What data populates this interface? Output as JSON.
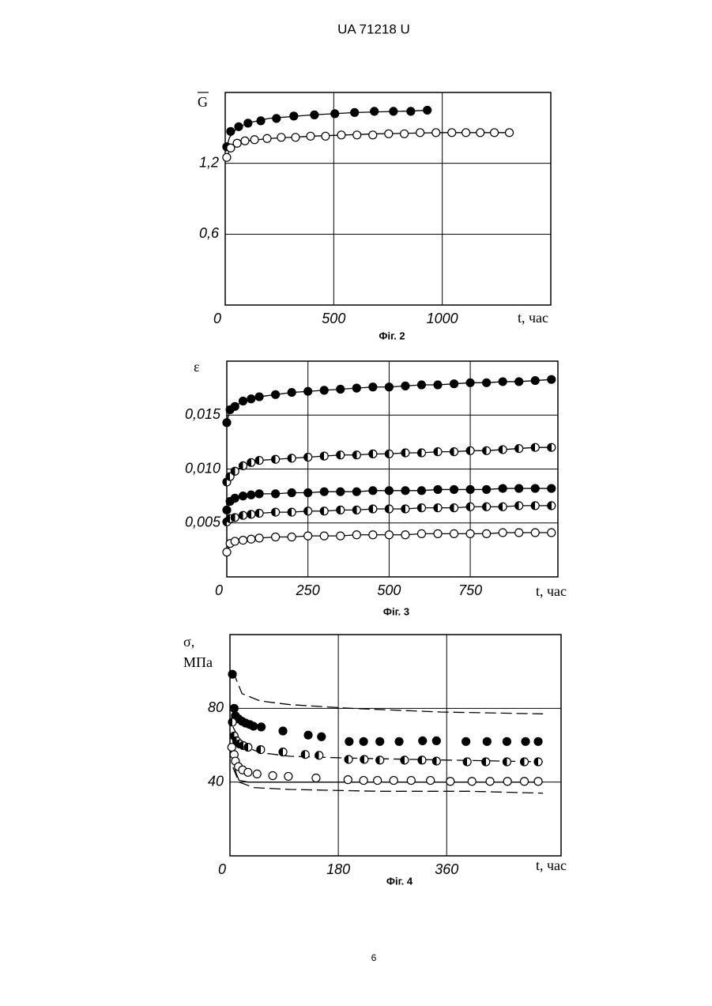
{
  "header": "UA   71218   U",
  "page_number": "6",
  "chart_data": [
    {
      "type": "scatter",
      "caption": "Фіг. 2",
      "y_label": "G",
      "x_label": "t, час",
      "xlim": [
        0,
        1500
      ],
      "ylim": [
        0,
        1.8
      ],
      "xticks": [
        0,
        500,
        1000
      ],
      "yticks": [
        {
          "value": 0.6,
          "label": "0,6"
        },
        {
          "value": 1.2,
          "label": "1,2"
        }
      ],
      "grid": true,
      "series": [
        {
          "marker": "filled",
          "x": [
            7,
            25,
            62,
            105,
            164,
            236,
            316,
            411,
            505,
            596,
            687,
            775,
            855,
            931
          ],
          "values": [
            1.34,
            1.47,
            1.51,
            1.54,
            1.56,
            1.58,
            1.6,
            1.61,
            1.62,
            1.63,
            1.64,
            1.64,
            1.64,
            1.65
          ]
        },
        {
          "marker": "open",
          "x": [
            7,
            25,
            55,
            91,
            135,
            193,
            258,
            324,
            393,
            462,
            535,
            607,
            680,
            753,
            825,
            898,
            971,
            1044,
            1109,
            1175,
            1240,
            1309
          ],
          "values": [
            1.25,
            1.33,
            1.37,
            1.39,
            1.4,
            1.41,
            1.42,
            1.42,
            1.43,
            1.43,
            1.44,
            1.44,
            1.44,
            1.45,
            1.45,
            1.46,
            1.46,
            1.46,
            1.46,
            1.46,
            1.46,
            1.46
          ]
        }
      ],
      "curves": [
        {
          "style": "solid",
          "x": [
            0,
            20,
            50,
            100,
            200,
            400,
            600,
            800,
            950
          ],
          "values": [
            1.3,
            1.42,
            1.49,
            1.54,
            1.58,
            1.61,
            1.63,
            1.64,
            1.65
          ]
        },
        {
          "style": "solid",
          "x": [
            0,
            20,
            50,
            100,
            200,
            400,
            700,
            1000,
            1300
          ],
          "values": [
            1.22,
            1.31,
            1.36,
            1.39,
            1.41,
            1.43,
            1.45,
            1.46,
            1.46
          ]
        }
      ]
    },
    {
      "type": "scatter",
      "caption": "Фіг. 3",
      "y_label": "ε",
      "x_label": "t, час",
      "xlim": [
        0,
        1020
      ],
      "ylim": [
        0,
        0.02
      ],
      "xticks": [
        0,
        250,
        500,
        750
      ],
      "yticks": [
        {
          "value": 0.005,
          "label": "0,005"
        },
        {
          "value": 0.01,
          "label": "0,010"
        },
        {
          "value": 0.015,
          "label": "0,015"
        }
      ],
      "grid": true,
      "x": [
        0,
        10,
        25,
        50,
        75,
        100,
        150,
        200,
        250,
        300,
        350,
        400,
        450,
        500,
        550,
        600,
        650,
        700,
        750,
        800,
        850,
        900,
        950,
        1000
      ],
      "series": [
        {
          "marker": "filled",
          "line": true,
          "values": [
            0.0143,
            0.0155,
            0.0158,
            0.0163,
            0.0165,
            0.0167,
            0.0169,
            0.0171,
            0.0172,
            0.0173,
            0.0174,
            0.0175,
            0.0176,
            0.0176,
            0.0177,
            0.0178,
            0.0178,
            0.0179,
            0.018,
            0.018,
            0.0181,
            0.0181,
            0.0182,
            0.0183
          ]
        },
        {
          "marker": "half",
          "line": true,
          "values": [
            0.0088,
            0.0093,
            0.0098,
            0.0103,
            0.0106,
            0.0108,
            0.0109,
            0.011,
            0.0111,
            0.0112,
            0.0113,
            0.0113,
            0.0114,
            0.0114,
            0.0115,
            0.0115,
            0.0116,
            0.0116,
            0.0117,
            0.0117,
            0.0118,
            0.0119,
            0.012,
            0.012
          ]
        },
        {
          "marker": "filled",
          "line": true,
          "values": [
            0.0062,
            0.007,
            0.0073,
            0.0075,
            0.0076,
            0.0077,
            0.0077,
            0.0078,
            0.0078,
            0.0079,
            0.0079,
            0.0079,
            0.008,
            0.008,
            0.008,
            0.008,
            0.0081,
            0.0081,
            0.0081,
            0.0081,
            0.0082,
            0.0082,
            0.0082,
            0.0082
          ]
        },
        {
          "marker": "half",
          "line": true,
          "values": [
            0.0051,
            0.0054,
            0.0055,
            0.0057,
            0.0058,
            0.0059,
            0.006,
            0.006,
            0.0061,
            0.0061,
            0.0062,
            0.0062,
            0.0063,
            0.0063,
            0.0063,
            0.0064,
            0.0064,
            0.0064,
            0.0065,
            0.0065,
            0.0065,
            0.0066,
            0.0066,
            0.0066
          ]
        },
        {
          "marker": "open",
          "line": true,
          "values": [
            0.0023,
            0.0031,
            0.0033,
            0.0034,
            0.0035,
            0.0036,
            0.0037,
            0.0037,
            0.0038,
            0.0038,
            0.0038,
            0.0039,
            0.0039,
            0.0039,
            0.0039,
            0.004,
            0.004,
            0.004,
            0.004,
            0.004,
            0.0041,
            0.0041,
            0.0041,
            0.0041
          ]
        }
      ]
    },
    {
      "type": "scatter",
      "caption": "Фіг. 4",
      "y_label": [
        "σ,",
        "МПа"
      ],
      "x_label": "t, час",
      "xlim": [
        0,
        550
      ],
      "ylim": [
        0,
        120
      ],
      "xticks": [
        0,
        180,
        360
      ],
      "yticks": [
        40,
        80
      ],
      "grid": true,
      "series": [
        {
          "marker": "filled",
          "x": [
            4,
            7,
            9,
            14,
            20,
            26,
            33,
            39,
            52,
            88,
            130,
            152,
            198,
            222,
            249,
            281,
            320,
            343,
            392,
            427,
            460,
            491,
            512
          ],
          "values": [
            98.5,
            80,
            76,
            74.3,
            73,
            72,
            71.2,
            70.3,
            69.9,
            67.7,
            65.5,
            64.6,
            62,
            62,
            62,
            62,
            62.4,
            62.4,
            62,
            62,
            62,
            62,
            62
          ]
        },
        {
          "marker": "half",
          "x": [
            4,
            7,
            11,
            16,
            22,
            30,
            51,
            88,
            125,
            148,
            197,
            223,
            249,
            290,
            319,
            343,
            394,
            425,
            460,
            489,
            512
          ],
          "values": [
            72.5,
            65,
            62.4,
            60.7,
            59.8,
            58.9,
            57.6,
            56.3,
            55,
            54.5,
            52.3,
            52.3,
            51.9,
            51.9,
            51.9,
            51.4,
            51,
            51,
            51,
            51,
            51
          ]
        },
        {
          "marker": "open",
          "x": [
            3,
            7,
            9,
            14,
            21,
            30,
            45,
            71,
            97,
            143,
            196,
            222,
            245,
            272,
            301,
            333,
            366,
            402,
            432,
            461,
            489,
            512
          ],
          "values": [
            58.9,
            54.9,
            51.4,
            48.4,
            46.6,
            45.3,
            44.4,
            43.5,
            43.1,
            42.2,
            41.3,
            40.9,
            40.9,
            40.9,
            40.9,
            40.9,
            40.4,
            40.4,
            40.4,
            40.4,
            40.4,
            40.4
          ]
        }
      ],
      "curves": [
        {
          "style": "dashed",
          "x": [
            5,
            20,
            50,
            100,
            200,
            350,
            520
          ],
          "values": [
            100,
            88,
            84,
            82,
            80,
            78,
            77
          ]
        },
        {
          "style": "dashed",
          "x": [
            5,
            20,
            50,
            100,
            200,
            350,
            520
          ],
          "values": [
            70,
            60,
            56,
            54,
            53,
            52,
            51
          ]
        },
        {
          "style": "solid",
          "x": [
            5,
            10,
            15,
            30,
            100,
            300,
            520
          ],
          "values": [
            55,
            45,
            41,
            40,
            40,
            40,
            40
          ]
        },
        {
          "style": "dashed",
          "x": [
            5,
            15,
            40,
            100,
            250,
            400,
            520
          ],
          "values": [
            48,
            40,
            37,
            36,
            35,
            35,
            34
          ]
        }
      ]
    }
  ]
}
